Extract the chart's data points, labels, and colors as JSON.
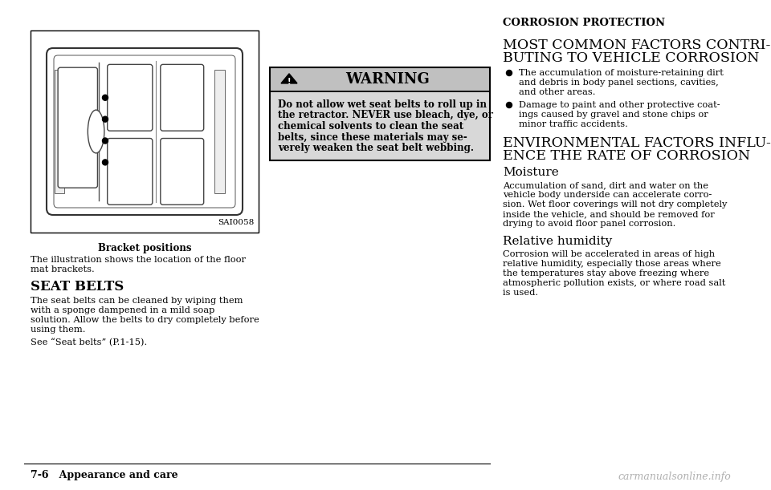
{
  "bg_color": "#ffffff",
  "warning_box": {
    "header_color": "#c0c0c0",
    "body_color": "#d8d8d8",
    "header_text": "WARNING",
    "body_lines": [
      "Do not allow wet seat belts to roll up in",
      "the retractor. NEVER use bleach, dye, or",
      "chemical solvents to clean the seat",
      "belts, since these materials may se-",
      "verely weaken the seat belt webbing."
    ]
  },
  "left_col": {
    "image_caption": "Bracket positions",
    "image_code": "SAI0058",
    "section_title": "SEAT BELTS",
    "para1_lines": [
      "The illustration shows the location of the floor",
      "mat brackets."
    ],
    "para2_lines": [
      "The seat belts can be cleaned by wiping them",
      "with a sponge dampened in a mild soap",
      "solution. Allow the belts to dry completely before",
      "using them."
    ],
    "para3": "See “Seat belts” (P.1-15)."
  },
  "right_col": {
    "main_title": "CORROSION PROTECTION",
    "section1_line1": "MOST COMMON FACTORS CONTRI-",
    "section1_line2": "BUTING TO VEHICLE CORROSION",
    "bullet1_lines": [
      "The accumulation of moisture-retaining dirt",
      "and debris in body panel sections, cavities,",
      "and other areas."
    ],
    "bullet2_lines": [
      "Damage to paint and other protective coat-",
      "ings caused by gravel and stone chips or",
      "minor traffic accidents."
    ],
    "section2_line1": "ENVIRONMENTAL FACTORS INFLU-",
    "section2_line2": "ENCE THE RATE OF CORROSION",
    "sub1_title": "Moisture",
    "sub1_lines": [
      "Accumulation of sand, dirt and water on the",
      "vehicle body underside can accelerate corro-",
      "sion. Wet floor coverings will not dry completely",
      "inside the vehicle, and should be removed for",
      "drying to avoid floor panel corrosion."
    ],
    "sub2_title": "Relative humidity",
    "sub2_lines": [
      "Corrosion will be accelerated in areas of high",
      "relative humidity, especially those areas where",
      "the temperatures stay above freezing where",
      "atmospheric pollution exists, or where road salt",
      "is used."
    ]
  },
  "footer_text": "7-6   Appearance and care",
  "watermark": "carmanualsonline.info"
}
